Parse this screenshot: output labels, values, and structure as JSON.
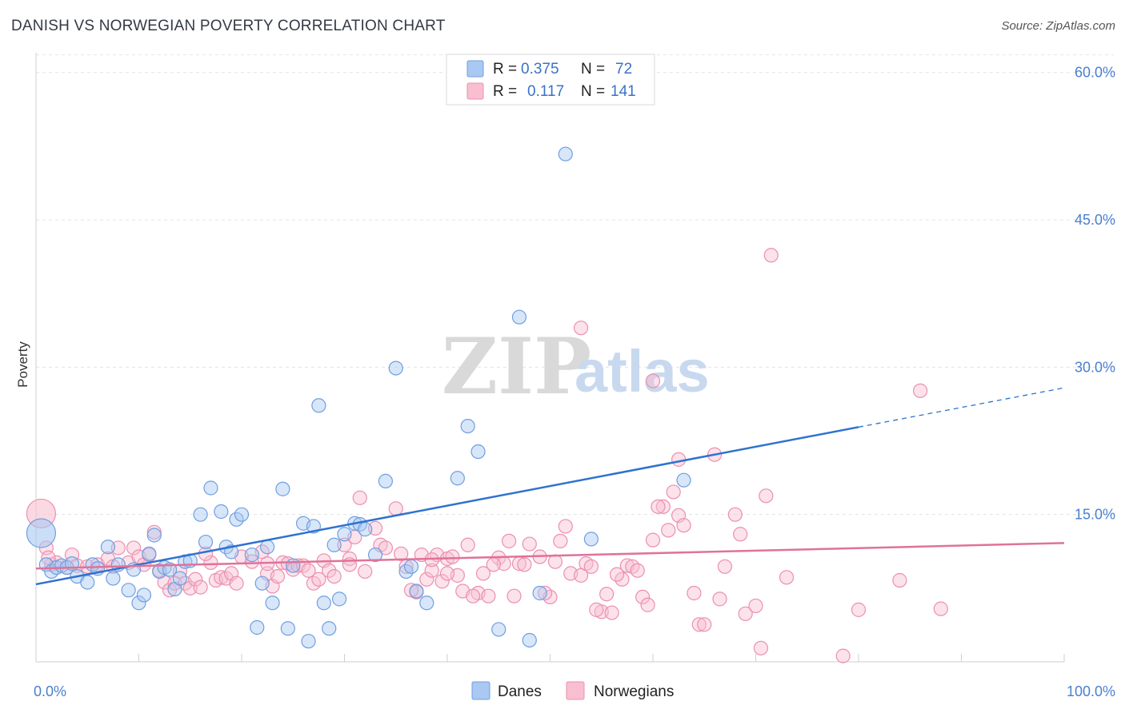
{
  "header": {
    "title": "DANISH VS NORWEGIAN POVERTY CORRELATION CHART",
    "source": "Source: ZipAtlas.com"
  },
  "watermark": {
    "part1": "ZIP",
    "part2": "atlas"
  },
  "legend": {
    "rows": [
      {
        "r_label": "R =",
        "r_value": "0.375",
        "n_label": "N =",
        "n_value": "72",
        "color": "#a9c8f2",
        "stroke": "#6f9fe0"
      },
      {
        "r_label": "R =",
        "r_value": "0.117",
        "n_label": "N =",
        "n_value": "141",
        "color": "#f9bfd0",
        "stroke": "#ec8fb0"
      }
    ]
  },
  "bottom_legend": {
    "items": [
      {
        "label": "Danes",
        "color": "#a9c8f2",
        "stroke": "#6f9fe0"
      },
      {
        "label": "Norwegians",
        "color": "#f9bfd0",
        "stroke": "#ec8fb0"
      }
    ]
  },
  "chart_data": {
    "type": "scatter",
    "title": "DANISH VS NORWEGIAN POVERTY CORRELATION CHART",
    "xlabel": "",
    "ylabel": "Poverty",
    "xlim": [
      0,
      100
    ],
    "ylim": [
      0,
      62.5
    ],
    "x_tick_labels": [
      "0.0%",
      "100.0%"
    ],
    "y_ticks": [
      15,
      30,
      45,
      60
    ],
    "y_tick_labels": [
      "15.0%",
      "30.0%",
      "45.0%",
      "60.0%"
    ],
    "grid": true,
    "series": [
      {
        "name": "Danes",
        "color": "#a9c8f2",
        "stroke": "#6f9fe0",
        "trend_color": "#2f72d0",
        "trend": {
          "x0": 0,
          "y0": 7.9,
          "x1": 80,
          "y1": 23.9,
          "dash_to_x": 100,
          "dash_to_y": 27.9
        },
        "points": [
          [
            0.5,
            13.1
          ],
          [
            1,
            9.9
          ],
          [
            1.5,
            9.2
          ],
          [
            2,
            9.6
          ],
          [
            2.5,
            9.8
          ],
          [
            3,
            9.6
          ],
          [
            3.5,
            10.0
          ],
          [
            4,
            8.7
          ],
          [
            5,
            8.1
          ],
          [
            5.5,
            9.9
          ],
          [
            6,
            9.5
          ],
          [
            7,
            11.7
          ],
          [
            7.5,
            8.5
          ],
          [
            8,
            9.9
          ],
          [
            9,
            7.3
          ],
          [
            9.5,
            9.4
          ],
          [
            10,
            6.0
          ],
          [
            10.5,
            6.8
          ],
          [
            11,
            11.0
          ],
          [
            11.5,
            12.9
          ],
          [
            12,
            9.2
          ],
          [
            12.5,
            9.6
          ],
          [
            13,
            9.4
          ],
          [
            13.5,
            7.4
          ],
          [
            14,
            8.5
          ],
          [
            14.5,
            10.2
          ],
          [
            15,
            10.3
          ],
          [
            16,
            15.0
          ],
          [
            16.5,
            12.2
          ],
          [
            17,
            17.7
          ],
          [
            18,
            15.3
          ],
          [
            18.5,
            11.7
          ],
          [
            19,
            11.2
          ],
          [
            19.5,
            14.5
          ],
          [
            20,
            15.0
          ],
          [
            21,
            10.9
          ],
          [
            22,
            8.0
          ],
          [
            22.5,
            11.7
          ],
          [
            23,
            6.0
          ],
          [
            24,
            17.6
          ],
          [
            25,
            9.8
          ],
          [
            26,
            14.1
          ],
          [
            27,
            13.8
          ],
          [
            28,
            6.0
          ],
          [
            29,
            11.9
          ],
          [
            30,
            13.0
          ],
          [
            31,
            14.1
          ],
          [
            31.5,
            14.0
          ],
          [
            32,
            13.5
          ],
          [
            33,
            10.9
          ],
          [
            34,
            18.4
          ],
          [
            35,
            29.9
          ],
          [
            36,
            9.2
          ],
          [
            37,
            7.2
          ],
          [
            38,
            6.0
          ],
          [
            27.5,
            26.1
          ],
          [
            21.5,
            3.5
          ],
          [
            24.5,
            3.4
          ],
          [
            26.5,
            2.1
          ],
          [
            28.5,
            3.4
          ],
          [
            29.5,
            6.4
          ],
          [
            41,
            18.7
          ],
          [
            42,
            24.0
          ],
          [
            43,
            21.4
          ],
          [
            45,
            3.3
          ],
          [
            47,
            35.1
          ],
          [
            48,
            2.2
          ],
          [
            49,
            7.0
          ],
          [
            51.5,
            51.7
          ],
          [
            54,
            12.5
          ],
          [
            63,
            18.5
          ],
          [
            36.5,
            9.7
          ]
        ]
      },
      {
        "name": "Norwegians",
        "color": "#f9bfd0",
        "stroke": "#ec8fb0",
        "trend_color": "#e0729a",
        "trend": {
          "x0": 0,
          "y0": 9.5,
          "x1": 100,
          "y1": 12.1
        },
        "points": [
          [
            0.5,
            15.1
          ],
          [
            1,
            11.6
          ],
          [
            1.5,
            9.9
          ],
          [
            2,
            10.1
          ],
          [
            3,
            9.6
          ],
          [
            3.5,
            10.9
          ],
          [
            4,
            9.8
          ],
          [
            5,
            9.7
          ],
          [
            6,
            9.9
          ],
          [
            7,
            10.5
          ],
          [
            7.5,
            9.7
          ],
          [
            8,
            11.6
          ],
          [
            9,
            10.1
          ],
          [
            9.5,
            11.6
          ],
          [
            10,
            10.7
          ],
          [
            10.5,
            9.9
          ],
          [
            11,
            10.9
          ],
          [
            11.5,
            13.2
          ],
          [
            12,
            9.3
          ],
          [
            12.5,
            8.1
          ],
          [
            13,
            7.3
          ],
          [
            13.5,
            8.0
          ],
          [
            14,
            9.2
          ],
          [
            14.5,
            8.0
          ],
          [
            15,
            7.5
          ],
          [
            15.5,
            8.4
          ],
          [
            16,
            7.6
          ],
          [
            17,
            10.1
          ],
          [
            17.5,
            8.3
          ],
          [
            18,
            8.6
          ],
          [
            18.5,
            8.5
          ],
          [
            19,
            9.0
          ],
          [
            19.5,
            8.0
          ],
          [
            20,
            10.7
          ],
          [
            21,
            10.2
          ],
          [
            22,
            11.2
          ],
          [
            22.5,
            9.0
          ],
          [
            23,
            7.7
          ],
          [
            23.5,
            8.7
          ],
          [
            24,
            10.1
          ],
          [
            24.5,
            10.0
          ],
          [
            25,
            9.4
          ],
          [
            25.5,
            9.8
          ],
          [
            26,
            9.8
          ],
          [
            27,
            8.0
          ],
          [
            27.5,
            8.4
          ],
          [
            28,
            10.3
          ],
          [
            28.5,
            9.3
          ],
          [
            29,
            8.7
          ],
          [
            30,
            11.9
          ],
          [
            30.5,
            10.5
          ],
          [
            31,
            12.7
          ],
          [
            31.5,
            16.7
          ],
          [
            32,
            9.2
          ],
          [
            33,
            13.6
          ],
          [
            33.5,
            11.9
          ],
          [
            34,
            11.6
          ],
          [
            35,
            15.6
          ],
          [
            35.5,
            11.0
          ],
          [
            36,
            9.7
          ],
          [
            37,
            7.1
          ],
          [
            37.5,
            10.9
          ],
          [
            38,
            8.4
          ],
          [
            38.5,
            9.3
          ],
          [
            39,
            10.9
          ],
          [
            39.5,
            8.2
          ],
          [
            40,
            10.5
          ],
          [
            40.5,
            10.7
          ],
          [
            41,
            8.8
          ],
          [
            41.5,
            7.2
          ],
          [
            42,
            11.9
          ],
          [
            43,
            7.0
          ],
          [
            43.5,
            9.0
          ],
          [
            44,
            6.7
          ],
          [
            45,
            10.6
          ],
          [
            45.5,
            10.0
          ],
          [
            46,
            12.3
          ],
          [
            46.5,
            6.7
          ],
          [
            47,
            10.0
          ],
          [
            47.5,
            9.9
          ],
          [
            48,
            12.0
          ],
          [
            49,
            10.7
          ],
          [
            50,
            6.6
          ],
          [
            50.5,
            10.2
          ],
          [
            51,
            12.3
          ],
          [
            51.5,
            13.8
          ],
          [
            52,
            9.0
          ],
          [
            53,
            8.8
          ],
          [
            53.5,
            10.0
          ],
          [
            54,
            9.7
          ],
          [
            55,
            5.1
          ],
          [
            55.5,
            6.9
          ],
          [
            56,
            5.0
          ],
          [
            57,
            8.4
          ],
          [
            57.5,
            9.8
          ],
          [
            58,
            9.7
          ],
          [
            59,
            6.6
          ],
          [
            59.5,
            5.8
          ],
          [
            60,
            12.4
          ],
          [
            61,
            15.8
          ],
          [
            61.5,
            13.4
          ],
          [
            62,
            17.3
          ],
          [
            62.5,
            14.9
          ],
          [
            63,
            13.9
          ],
          [
            64,
            7.0
          ],
          [
            64.5,
            3.8
          ],
          [
            65,
            3.8
          ],
          [
            66,
            21.1
          ],
          [
            67,
            9.7
          ],
          [
            68,
            15.0
          ],
          [
            68.5,
            13.0
          ],
          [
            69,
            4.9
          ],
          [
            70,
            5.7
          ],
          [
            70.5,
            1.4
          ],
          [
            71,
            16.9
          ],
          [
            71.5,
            41.4
          ],
          [
            73,
            8.6
          ],
          [
            78.5,
            0.6
          ],
          [
            80,
            5.3
          ],
          [
            84,
            8.3
          ],
          [
            86,
            27.6
          ],
          [
            88,
            5.4
          ],
          [
            53,
            34.0
          ],
          [
            60,
            28.6
          ],
          [
            62.5,
            20.6
          ],
          [
            40,
            9.0
          ],
          [
            44.5,
            9.9
          ],
          [
            49.5,
            7.0
          ],
          [
            54.5,
            5.3
          ],
          [
            56.5,
            8.9
          ],
          [
            58.5,
            9.3
          ],
          [
            60.5,
            15.8
          ],
          [
            66.5,
            6.4
          ],
          [
            42.5,
            6.7
          ],
          [
            38.5,
            10.4
          ],
          [
            36.5,
            7.3
          ],
          [
            30.5,
            9.9
          ],
          [
            26.5,
            9.3
          ],
          [
            22.5,
            10.0
          ],
          [
            16.5,
            11.0
          ],
          [
            1.2,
            10.6
          ]
        ]
      }
    ]
  }
}
